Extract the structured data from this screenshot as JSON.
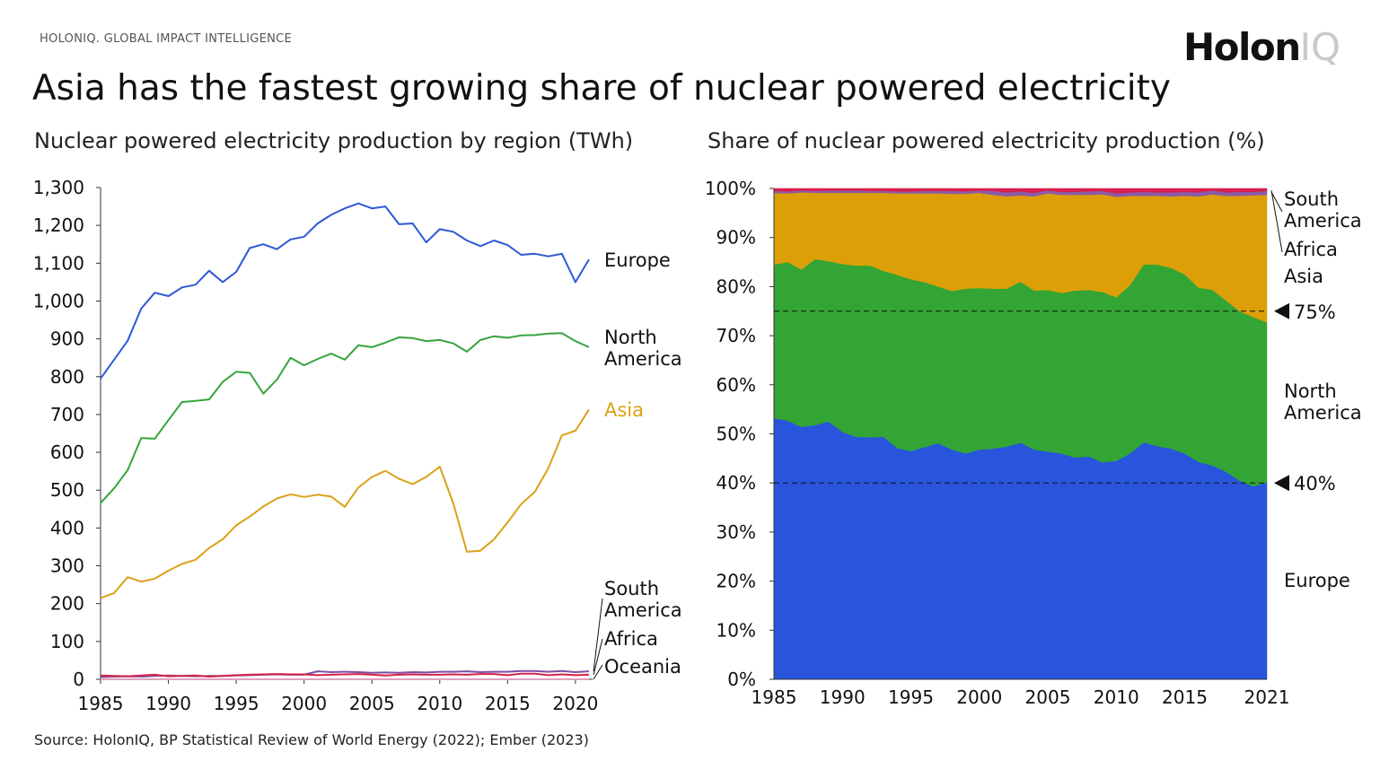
{
  "header": {
    "brand_text": "HOLONIQ. GLOBAL IMPACT INTELLIGENCE",
    "logo_main": "Holon",
    "logo_accent": "IQ",
    "title": "Asia has the fastest growing share of nuclear powered electricity"
  },
  "source": "Source: HolonIQ, BP Statistical Review of World Energy (2022); Ember (2023)",
  "chart_data": [
    {
      "type": "line",
      "title": "Nuclear powered electricity production by region (TWh)",
      "x": [
        1985,
        1986,
        1987,
        1988,
        1989,
        1990,
        1991,
        1992,
        1993,
        1994,
        1995,
        1996,
        1997,
        1998,
        1999,
        2000,
        2001,
        2002,
        2003,
        2004,
        2005,
        2006,
        2007,
        2008,
        2009,
        2010,
        2011,
        2012,
        2013,
        2014,
        2015,
        2016,
        2017,
        2018,
        2019,
        2020,
        2021
      ],
      "x_ticks": [
        "1985",
        "1990",
        "1995",
        "2000",
        "2005",
        "2010",
        "2015",
        "2020"
      ],
      "y_ticks": [
        "0",
        "100",
        "200",
        "300",
        "400",
        "500",
        "600",
        "700",
        "800",
        "900",
        "1,000",
        "1,100",
        "1,200",
        "1,300"
      ],
      "ylim": [
        0,
        1300
      ],
      "grid": false,
      "series": [
        {
          "name": "Europe",
          "color": "#2d58d6",
          "values": [
            795,
            845,
            895,
            980,
            1022,
            1013,
            1036,
            1043,
            1080,
            1050,
            1077,
            1140,
            1150,
            1137,
            1163,
            1170,
            1205,
            1228,
            1245,
            1258,
            1245,
            1250,
            1203,
            1205,
            1155,
            1190,
            1183,
            1160,
            1145,
            1160,
            1148,
            1122,
            1125,
            1118,
            1125,
            1050,
            1110
          ]
        },
        {
          "name": "North America",
          "color": "#36a43c",
          "values": [
            466,
            505,
            553,
            638,
            636,
            685,
            733,
            736,
            740,
            786,
            813,
            810,
            755,
            792,
            850,
            830,
            847,
            861,
            845,
            883,
            878,
            890,
            904,
            902,
            894,
            897,
            888,
            866,
            897,
            907,
            903,
            909,
            910,
            914,
            915,
            894,
            878
          ]
        },
        {
          "name": "Asia",
          "color": "#dba118",
          "values": [
            215,
            228,
            270,
            258,
            266,
            287,
            305,
            316,
            347,
            370,
            407,
            430,
            457,
            478,
            489,
            482,
            488,
            483,
            456,
            507,
            535,
            551,
            530,
            516,
            535,
            562,
            465,
            337,
            340,
            370,
            415,
            463,
            495,
            558,
            645,
            657,
            713
          ]
        },
        {
          "name": "South America",
          "color": "#7e4fa3",
          "values": [
            6,
            7,
            8,
            7,
            9,
            10,
            9,
            8,
            9,
            9,
            10,
            11,
            12,
            13,
            12,
            12,
            21,
            19,
            20,
            19,
            17,
            18,
            17,
            19,
            18,
            20,
            20,
            21,
            19,
            20,
            20,
            22,
            22,
            20,
            22,
            19,
            21
          ]
        },
        {
          "name": "Africa",
          "color": "#d3224b",
          "values": [
            10,
            9,
            8,
            10,
            12,
            8,
            9,
            10,
            7,
            9,
            11,
            12,
            13,
            14,
            13,
            13,
            11,
            12,
            13,
            14,
            12,
            10,
            12,
            13,
            12,
            12,
            13,
            12,
            14,
            14,
            11,
            15,
            15,
            11,
            13,
            11,
            12
          ]
        },
        {
          "name": "Oceania",
          "color": "#e0a0c0",
          "values": [
            0,
            0,
            0,
            0,
            0,
            0,
            0,
            0,
            0,
            0,
            0,
            0,
            0,
            0,
            0,
            0,
            0,
            0,
            0,
            0,
            0,
            0,
            0,
            0,
            0,
            0,
            0,
            0,
            0,
            0,
            0,
            0,
            0,
            0,
            0,
            0,
            0
          ]
        }
      ],
      "labels": {
        "europe": "Europe",
        "na1": "North",
        "na2": "America",
        "asia": "Asia",
        "sa1": "South",
        "sa2": "America",
        "africa": "Africa",
        "oceania": "Oceania"
      }
    },
    {
      "type": "area",
      "title": "Share of nuclear powered electricity production (%)",
      "x": [
        1985,
        1986,
        1987,
        1988,
        1989,
        1990,
        1991,
        1992,
        1993,
        1994,
        1995,
        1996,
        1997,
        1998,
        1999,
        2000,
        2001,
        2002,
        2003,
        2004,
        2005,
        2006,
        2007,
        2008,
        2009,
        2010,
        2011,
        2012,
        2013,
        2014,
        2015,
        2016,
        2017,
        2018,
        2019,
        2020,
        2021
      ],
      "x_ticks": [
        "1985",
        "1990",
        "1995",
        "2000",
        "2005",
        "2010",
        "2015",
        "2021"
      ],
      "y_ticks": [
        "0%",
        "10%",
        "20%",
        "30%",
        "40%",
        "50%",
        "60%",
        "70%",
        "80%",
        "90%",
        "100%"
      ],
      "ylim": [
        0,
        100
      ],
      "stacked": true,
      "series": [
        {
          "name": "Europe",
          "color": "#2855dc",
          "values": [
            53.2,
            52.7,
            51.4,
            51.8,
            52.5,
            50.4,
            49.4,
            49.3,
            49.4,
            47.1,
            46.5,
            47.3,
            48.1,
            46.8,
            46.0,
            46.8,
            47.0,
            47.4,
            48.2,
            46.8,
            46.4,
            46.0,
            45.2,
            45.4,
            44.2,
            44.5,
            46.0,
            48.3,
            47.5,
            47.0,
            46.0,
            44.3,
            43.6,
            42.3,
            40.5,
            39.3,
            40.1
          ]
        },
        {
          "name": "North America",
          "color": "#33a534",
          "values": [
            31.3,
            32.3,
            32.1,
            33.8,
            32.7,
            34.2,
            34.9,
            35.0,
            33.8,
            35.3,
            35.0,
            33.6,
            31.9,
            32.3,
            33.6,
            32.9,
            32.6,
            32.2,
            32.8,
            32.4,
            32.9,
            32.7,
            34.0,
            33.9,
            34.7,
            33.3,
            34.3,
            36.2,
            37.0,
            36.8,
            36.5,
            35.5,
            35.8,
            34.9,
            34.5,
            34.5,
            32.6
          ]
        },
        {
          "name": "Asia",
          "color": "#dc9f08",
          "values": [
            14.6,
            14.0,
            15.7,
            13.5,
            13.9,
            14.5,
            14.8,
            14.8,
            15.9,
            16.6,
            17.5,
            18.1,
            19.0,
            19.8,
            19.3,
            19.4,
            19.1,
            18.8,
            17.6,
            19.2,
            19.7,
            20.0,
            19.5,
            19.4,
            19.9,
            20.5,
            18.2,
            14.0,
            14.0,
            14.6,
            16.0,
            18.6,
            19.4,
            21.3,
            23.5,
            24.8,
            26.0
          ]
        },
        {
          "name": "South America",
          "color": "#8a5ba8",
          "values": [
            0.4,
            0.4,
            0.4,
            0.4,
            0.5,
            0.5,
            0.5,
            0.4,
            0.4,
            0.4,
            0.4,
            0.5,
            0.5,
            0.6,
            0.5,
            0.5,
            0.8,
            0.8,
            0.8,
            0.7,
            0.6,
            0.6,
            0.6,
            0.7,
            0.7,
            0.7,
            0.7,
            0.8,
            0.7,
            0.8,
            0.8,
            0.8,
            0.8,
            0.7,
            0.8,
            0.7,
            0.8
          ]
        },
        {
          "name": "Africa",
          "color": "#d81f4f",
          "values": [
            0.5,
            0.6,
            0.4,
            0.5,
            0.4,
            0.4,
            0.4,
            0.5,
            0.5,
            0.6,
            0.6,
            0.5,
            0.5,
            0.5,
            0.6,
            0.4,
            0.5,
            0.8,
            0.6,
            0.9,
            0.4,
            0.7,
            0.7,
            0.6,
            0.5,
            1.0,
            0.8,
            0.7,
            0.8,
            0.8,
            0.7,
            0.8,
            0.4,
            0.8,
            0.7,
            0.7,
            0.5
          ]
        }
      ],
      "labels": {
        "sa1": "South",
        "sa2": "America",
        "africa": "Africa",
        "asia": "Asia",
        "na1": "North",
        "na2": "America",
        "europe": "Europe"
      },
      "markers": [
        {
          "value": 75,
          "label": "75%"
        },
        {
          "value": 40,
          "label": "40%"
        }
      ]
    }
  ]
}
